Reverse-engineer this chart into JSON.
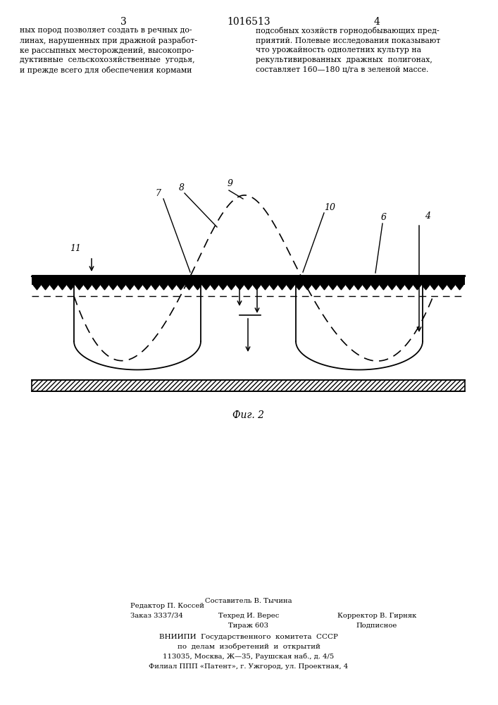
{
  "page_title": "1016513",
  "page_left": "3",
  "page_right": "4",
  "text_left": "ных пород позволяет создать в речных до-\nлинах, нарушенных при дражной разработ-\nке рассыпных месторождений, высокопро-\nдуктивные  сельскохозяйственные  угодья,\nи прежде всего для обеспечения кормами",
  "text_right": "подсобных хозяйств горнодобывающих пред-\nприятий. Полевые исследования показывают\nчто урожайность однолетних культур на\nрекультивированных  дражных  полигонах,\nсоставляет 160—180 ц/га в зеленой массе.",
  "fig_caption": "Фиг. 2",
  "background_color": "#ffffff",
  "line_color": "#000000"
}
